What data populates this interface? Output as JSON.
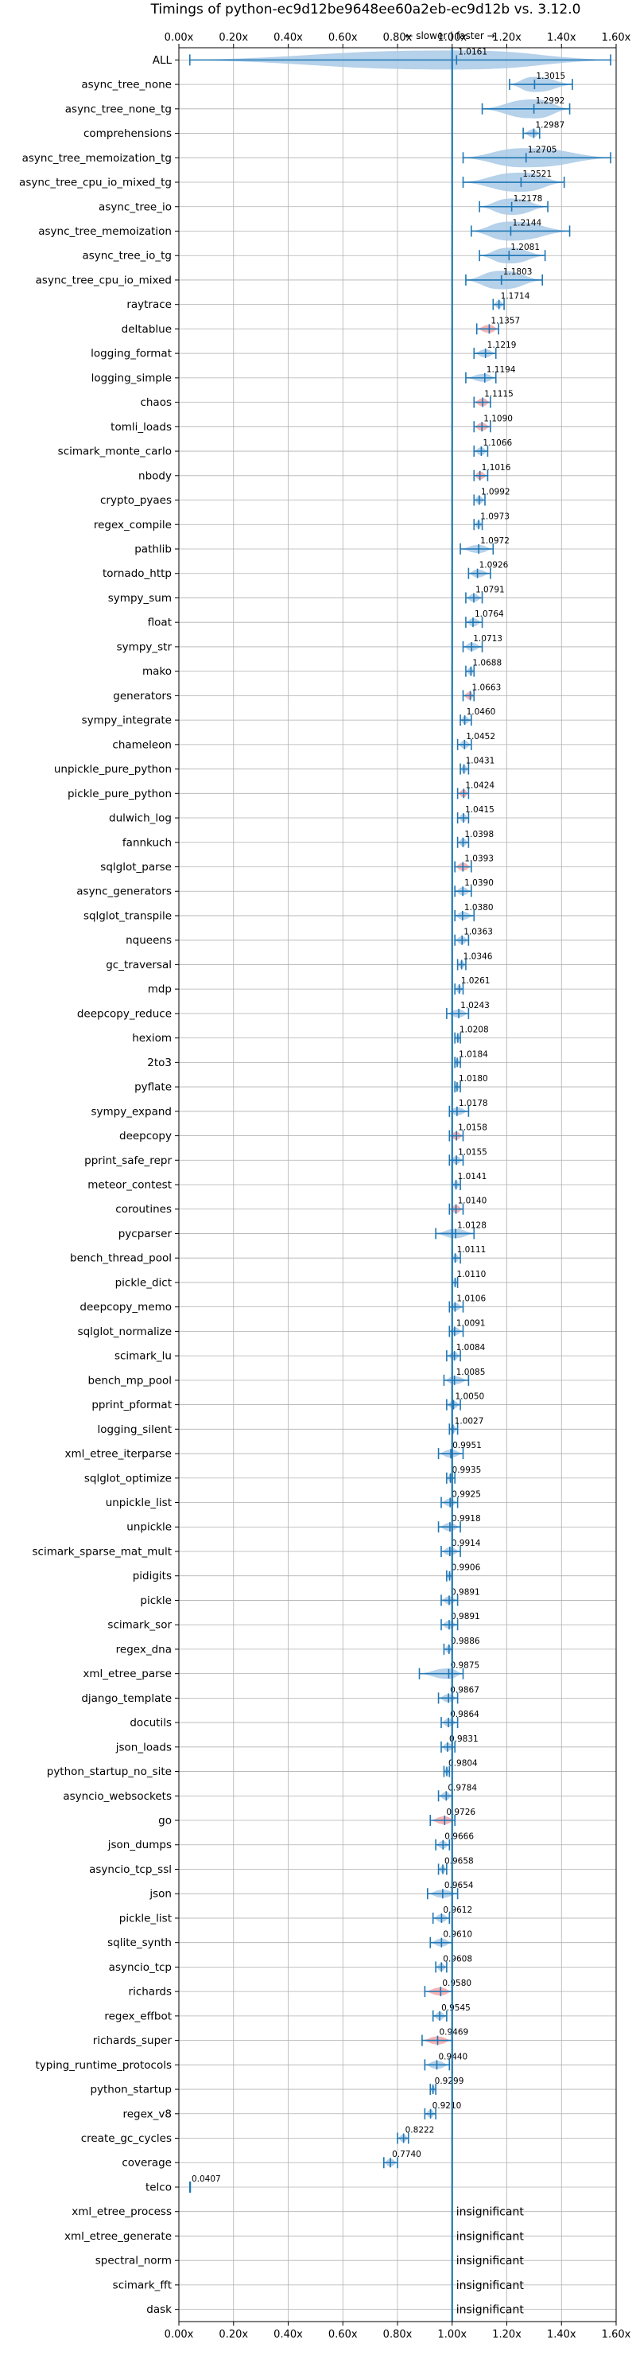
{
  "chart_data": {
    "type": "violin",
    "title": "Timings of python-ec9d12be9648ee60a2eb-ec9d12b vs. 3.12.0",
    "direction_label": "← slower | faster →",
    "xlim": [
      0,
      1.6
    ],
    "xticks": [
      "0.00x",
      "0.20x",
      "0.40x",
      "0.60x",
      "0.80x",
      "1.00x",
      "1.20x",
      "1.40x",
      "1.60x"
    ],
    "xtick_values": [
      0,
      0.2,
      0.4,
      0.6,
      0.8,
      1.0,
      1.2,
      1.4,
      1.6
    ],
    "reference_value": 1.0,
    "insignificant_label": "insignificant",
    "colors": {
      "violin": "#a9c9e6",
      "highlight": "#f4a6a8",
      "line": "#1f77b4",
      "grid": "#b0b0b0"
    },
    "benchmarks": [
      {
        "name": "ALL",
        "value": 1.0161,
        "label": "1.0161",
        "min": 0.04,
        "max": 1.58,
        "highlight": false
      },
      {
        "name": "async_tree_none",
        "value": 1.3015,
        "label": "1.3015",
        "min": 1.21,
        "max": 1.44,
        "highlight": false
      },
      {
        "name": "async_tree_none_tg",
        "value": 1.2992,
        "label": "1.2992",
        "min": 1.11,
        "max": 1.43,
        "highlight": false
      },
      {
        "name": "comprehensions",
        "value": 1.2987,
        "label": "1.2987",
        "min": 1.26,
        "max": 1.32,
        "highlight": false
      },
      {
        "name": "async_tree_memoization_tg",
        "value": 1.2705,
        "label": "1.2705",
        "min": 1.04,
        "max": 1.58,
        "highlight": false
      },
      {
        "name": "async_tree_cpu_io_mixed_tg",
        "value": 1.2521,
        "label": "1.2521",
        "min": 1.04,
        "max": 1.41,
        "highlight": false
      },
      {
        "name": "async_tree_io",
        "value": 1.2178,
        "label": "1.2178",
        "min": 1.1,
        "max": 1.35,
        "highlight": false
      },
      {
        "name": "async_tree_memoization",
        "value": 1.2144,
        "label": "1.2144",
        "min": 1.07,
        "max": 1.43,
        "highlight": false
      },
      {
        "name": "async_tree_io_tg",
        "value": 1.2081,
        "label": "1.2081",
        "min": 1.1,
        "max": 1.34,
        "highlight": false
      },
      {
        "name": "async_tree_cpu_io_mixed",
        "value": 1.1803,
        "label": "1.1803",
        "min": 1.05,
        "max": 1.33,
        "highlight": false
      },
      {
        "name": "raytrace",
        "value": 1.1714,
        "label": "1.1714",
        "min": 1.15,
        "max": 1.19,
        "highlight": false
      },
      {
        "name": "deltablue",
        "value": 1.1357,
        "label": "1.1357",
        "min": 1.09,
        "max": 1.17,
        "highlight": true
      },
      {
        "name": "logging_format",
        "value": 1.1219,
        "label": "1.1219",
        "min": 1.08,
        "max": 1.16,
        "highlight": false
      },
      {
        "name": "logging_simple",
        "value": 1.1194,
        "label": "1.1194",
        "min": 1.05,
        "max": 1.16,
        "highlight": false
      },
      {
        "name": "chaos",
        "value": 1.1115,
        "label": "1.1115",
        "min": 1.08,
        "max": 1.14,
        "highlight": true
      },
      {
        "name": "tomli_loads",
        "value": 1.109,
        "label": "1.1090",
        "min": 1.08,
        "max": 1.14,
        "highlight": true
      },
      {
        "name": "scimark_monte_carlo",
        "value": 1.1066,
        "label": "1.1066",
        "min": 1.08,
        "max": 1.13,
        "highlight": false
      },
      {
        "name": "nbody",
        "value": 1.1016,
        "label": "1.1016",
        "min": 1.08,
        "max": 1.13,
        "highlight": true
      },
      {
        "name": "crypto_pyaes",
        "value": 1.0992,
        "label": "1.0992",
        "min": 1.08,
        "max": 1.12,
        "highlight": false
      },
      {
        "name": "regex_compile",
        "value": 1.0973,
        "label": "1.0973",
        "min": 1.08,
        "max": 1.11,
        "highlight": false
      },
      {
        "name": "pathlib",
        "value": 1.0972,
        "label": "1.0972",
        "min": 1.03,
        "max": 1.15,
        "highlight": false
      },
      {
        "name": "tornado_http",
        "value": 1.0926,
        "label": "1.0926",
        "min": 1.06,
        "max": 1.14,
        "highlight": false
      },
      {
        "name": "sympy_sum",
        "value": 1.0791,
        "label": "1.0791",
        "min": 1.05,
        "max": 1.11,
        "highlight": false
      },
      {
        "name": "float",
        "value": 1.0764,
        "label": "1.0764",
        "min": 1.05,
        "max": 1.11,
        "highlight": false
      },
      {
        "name": "sympy_str",
        "value": 1.0713,
        "label": "1.0713",
        "min": 1.04,
        "max": 1.11,
        "highlight": false
      },
      {
        "name": "mako",
        "value": 1.0688,
        "label": "1.0688",
        "min": 1.05,
        "max": 1.08,
        "highlight": false
      },
      {
        "name": "generators",
        "value": 1.0663,
        "label": "1.0663",
        "min": 1.04,
        "max": 1.08,
        "highlight": true
      },
      {
        "name": "sympy_integrate",
        "value": 1.046,
        "label": "1.0460",
        "min": 1.03,
        "max": 1.07,
        "highlight": false
      },
      {
        "name": "chameleon",
        "value": 1.0452,
        "label": "1.0452",
        "min": 1.02,
        "max": 1.07,
        "highlight": false
      },
      {
        "name": "unpickle_pure_python",
        "value": 1.0431,
        "label": "1.0431",
        "min": 1.03,
        "max": 1.06,
        "highlight": false
      },
      {
        "name": "pickle_pure_python",
        "value": 1.0424,
        "label": "1.0424",
        "min": 1.02,
        "max": 1.06,
        "highlight": true
      },
      {
        "name": "dulwich_log",
        "value": 1.0415,
        "label": "1.0415",
        "min": 1.02,
        "max": 1.06,
        "highlight": false
      },
      {
        "name": "fannkuch",
        "value": 1.0398,
        "label": "1.0398",
        "min": 1.02,
        "max": 1.06,
        "highlight": false
      },
      {
        "name": "sqlglot_parse",
        "value": 1.0393,
        "label": "1.0393",
        "min": 1.01,
        "max": 1.07,
        "highlight": true
      },
      {
        "name": "async_generators",
        "value": 1.039,
        "label": "1.0390",
        "min": 1.01,
        "max": 1.07,
        "highlight": false
      },
      {
        "name": "sqlglot_transpile",
        "value": 1.038,
        "label": "1.0380",
        "min": 1.01,
        "max": 1.08,
        "highlight": false
      },
      {
        "name": "nqueens",
        "value": 1.0363,
        "label": "1.0363",
        "min": 1.01,
        "max": 1.06,
        "highlight": false
      },
      {
        "name": "gc_traversal",
        "value": 1.0346,
        "label": "1.0346",
        "min": 1.02,
        "max": 1.05,
        "highlight": false
      },
      {
        "name": "mdp",
        "value": 1.0261,
        "label": "1.0261",
        "min": 1.01,
        "max": 1.04,
        "highlight": false
      },
      {
        "name": "deepcopy_reduce",
        "value": 1.0243,
        "label": "1.0243",
        "min": 0.98,
        "max": 1.06,
        "highlight": false
      },
      {
        "name": "hexiom",
        "value": 1.0208,
        "label": "1.0208",
        "min": 1.01,
        "max": 1.03,
        "highlight": false
      },
      {
        "name": "2to3",
        "value": 1.0184,
        "label": "1.0184",
        "min": 1.01,
        "max": 1.03,
        "highlight": false
      },
      {
        "name": "pyflate",
        "value": 1.018,
        "label": "1.0180",
        "min": 1.01,
        "max": 1.03,
        "highlight": false
      },
      {
        "name": "sympy_expand",
        "value": 1.0178,
        "label": "1.0178",
        "min": 0.99,
        "max": 1.06,
        "highlight": false
      },
      {
        "name": "deepcopy",
        "value": 1.0158,
        "label": "1.0158",
        "min": 0.99,
        "max": 1.04,
        "highlight": true
      },
      {
        "name": "pprint_safe_repr",
        "value": 1.0155,
        "label": "1.0155",
        "min": 0.99,
        "max": 1.04,
        "highlight": false
      },
      {
        "name": "meteor_contest",
        "value": 1.0141,
        "label": "1.0141",
        "min": 1.0,
        "max": 1.03,
        "highlight": false
      },
      {
        "name": "coroutines",
        "value": 1.014,
        "label": "1.0140",
        "min": 0.99,
        "max": 1.04,
        "highlight": true
      },
      {
        "name": "pycparser",
        "value": 1.0128,
        "label": "1.0128",
        "min": 0.94,
        "max": 1.08,
        "highlight": false
      },
      {
        "name": "bench_thread_pool",
        "value": 1.0111,
        "label": "1.0111",
        "min": 1.0,
        "max": 1.03,
        "highlight": false
      },
      {
        "name": "pickle_dict",
        "value": 1.011,
        "label": "1.0110",
        "min": 1.0,
        "max": 1.02,
        "highlight": false
      },
      {
        "name": "deepcopy_memo",
        "value": 1.0106,
        "label": "1.0106",
        "min": 0.99,
        "max": 1.04,
        "highlight": false
      },
      {
        "name": "sqlglot_normalize",
        "value": 1.0091,
        "label": "1.0091",
        "min": 0.99,
        "max": 1.04,
        "highlight": false
      },
      {
        "name": "scimark_lu",
        "value": 1.0084,
        "label": "1.0084",
        "min": 0.98,
        "max": 1.03,
        "highlight": false
      },
      {
        "name": "bench_mp_pool",
        "value": 1.0085,
        "label": "1.0085",
        "min": 0.97,
        "max": 1.06,
        "highlight": false
      },
      {
        "name": "pprint_pformat",
        "value": 1.005,
        "label": "1.0050",
        "min": 0.98,
        "max": 1.03,
        "highlight": false
      },
      {
        "name": "logging_silent",
        "value": 1.0027,
        "label": "1.0027",
        "min": 0.99,
        "max": 1.02,
        "highlight": false
      },
      {
        "name": "xml_etree_iterparse",
        "value": 0.9951,
        "label": "0.9951",
        "min": 0.95,
        "max": 1.04,
        "highlight": false
      },
      {
        "name": "sqlglot_optimize",
        "value": 0.9935,
        "label": "0.9935",
        "min": 0.98,
        "max": 1.01,
        "highlight": false
      },
      {
        "name": "unpickle_list",
        "value": 0.9925,
        "label": "0.9925",
        "min": 0.96,
        "max": 1.02,
        "highlight": false
      },
      {
        "name": "unpickle",
        "value": 0.9918,
        "label": "0.9918",
        "min": 0.95,
        "max": 1.03,
        "highlight": false
      },
      {
        "name": "scimark_sparse_mat_mult",
        "value": 0.9914,
        "label": "0.9914",
        "min": 0.96,
        "max": 1.03,
        "highlight": false
      },
      {
        "name": "pidigits",
        "value": 0.9906,
        "label": "0.9906",
        "min": 0.98,
        "max": 1.0,
        "highlight": false
      },
      {
        "name": "pickle",
        "value": 0.9891,
        "label": "0.9891",
        "min": 0.96,
        "max": 1.02,
        "highlight": false
      },
      {
        "name": "scimark_sor",
        "value": 0.9891,
        "label": "0.9891",
        "min": 0.96,
        "max": 1.02,
        "highlight": false
      },
      {
        "name": "regex_dna",
        "value": 0.9886,
        "label": "0.9886",
        "min": 0.97,
        "max": 1.0,
        "highlight": false
      },
      {
        "name": "xml_etree_parse",
        "value": 0.9875,
        "label": "0.9875",
        "min": 0.88,
        "max": 1.04,
        "highlight": false
      },
      {
        "name": "django_template",
        "value": 0.9867,
        "label": "0.9867",
        "min": 0.95,
        "max": 1.02,
        "highlight": false
      },
      {
        "name": "docutils",
        "value": 0.9864,
        "label": "0.9864",
        "min": 0.96,
        "max": 1.02,
        "highlight": false
      },
      {
        "name": "json_loads",
        "value": 0.9831,
        "label": "0.9831",
        "min": 0.96,
        "max": 1.01,
        "highlight": false
      },
      {
        "name": "python_startup_no_site",
        "value": 0.9804,
        "label": "0.9804",
        "min": 0.97,
        "max": 0.99,
        "highlight": false
      },
      {
        "name": "asyncio_websockets",
        "value": 0.9784,
        "label": "0.9784",
        "min": 0.95,
        "max": 1.0,
        "highlight": false
      },
      {
        "name": "go",
        "value": 0.9726,
        "label": "0.9726",
        "min": 0.92,
        "max": 1.01,
        "highlight": true
      },
      {
        "name": "json_dumps",
        "value": 0.9666,
        "label": "0.9666",
        "min": 0.94,
        "max": 0.99,
        "highlight": false
      },
      {
        "name": "asyncio_tcp_ssl",
        "value": 0.9658,
        "label": "0.9658",
        "min": 0.95,
        "max": 0.98,
        "highlight": false
      },
      {
        "name": "json",
        "value": 0.9654,
        "label": "0.9654",
        "min": 0.91,
        "max": 1.02,
        "highlight": false
      },
      {
        "name": "pickle_list",
        "value": 0.9612,
        "label": "0.9612",
        "min": 0.93,
        "max": 0.99,
        "highlight": false
      },
      {
        "name": "sqlite_synth",
        "value": 0.961,
        "label": "0.9610",
        "min": 0.92,
        "max": 1.0,
        "highlight": false
      },
      {
        "name": "asyncio_tcp",
        "value": 0.9608,
        "label": "0.9608",
        "min": 0.94,
        "max": 0.98,
        "highlight": false
      },
      {
        "name": "richards",
        "value": 0.958,
        "label": "0.9580",
        "min": 0.9,
        "max": 1.0,
        "highlight": true
      },
      {
        "name": "regex_effbot",
        "value": 0.9545,
        "label": "0.9545",
        "min": 0.93,
        "max": 0.98,
        "highlight": false
      },
      {
        "name": "richards_super",
        "value": 0.9469,
        "label": "0.9469",
        "min": 0.89,
        "max": 1.0,
        "highlight": true
      },
      {
        "name": "typing_runtime_protocols",
        "value": 0.944,
        "label": "0.9440",
        "min": 0.9,
        "max": 0.99,
        "highlight": false
      },
      {
        "name": "python_startup",
        "value": 0.9299,
        "label": "0.9299",
        "min": 0.92,
        "max": 0.94,
        "highlight": false
      },
      {
        "name": "regex_v8",
        "value": 0.921,
        "label": "0.9210",
        "min": 0.9,
        "max": 0.94,
        "highlight": false
      },
      {
        "name": "create_gc_cycles",
        "value": 0.8222,
        "label": "0.8222",
        "min": 0.8,
        "max": 0.84,
        "highlight": false
      },
      {
        "name": "coverage",
        "value": 0.774,
        "label": "0.7740",
        "min": 0.75,
        "max": 0.8,
        "highlight": false
      },
      {
        "name": "telco",
        "value": 0.0407,
        "label": "0.0407",
        "min": 0.04,
        "max": 0.042,
        "highlight": false
      },
      {
        "name": "xml_etree_process",
        "value": null,
        "label": null,
        "insignificant": true
      },
      {
        "name": "xml_etree_generate",
        "value": null,
        "label": null,
        "insignificant": true
      },
      {
        "name": "spectral_norm",
        "value": null,
        "label": null,
        "insignificant": true
      },
      {
        "name": "scimark_fft",
        "value": null,
        "label": null,
        "insignificant": true
      },
      {
        "name": "dask",
        "value": null,
        "label": null,
        "insignificant": true
      }
    ]
  }
}
